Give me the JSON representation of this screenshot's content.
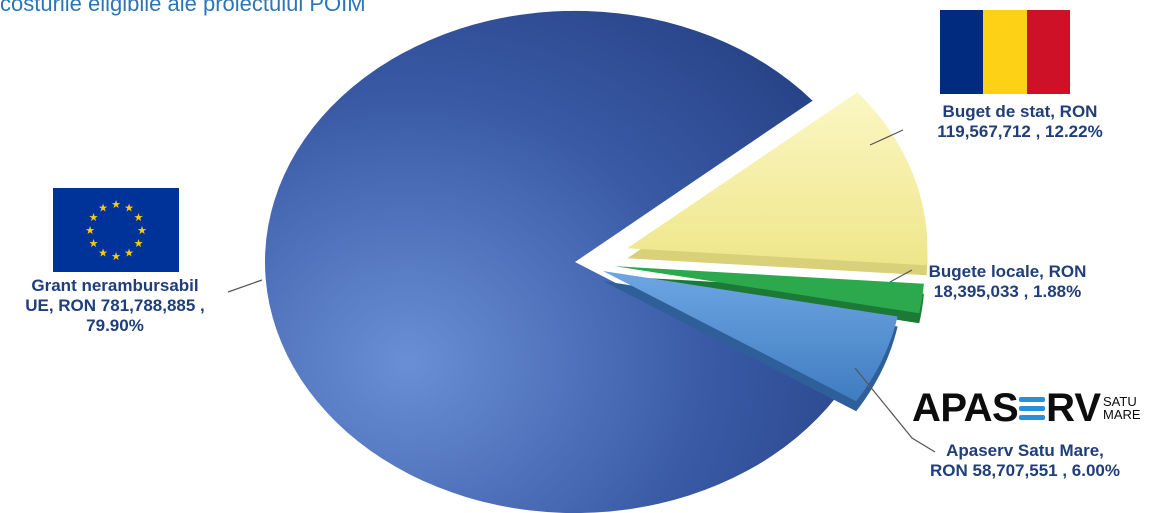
{
  "title": "costurile eligibile ale proiectului POIM",
  "colors": {
    "eu_slice": "#2f4f98",
    "stat_slice": "#f7f2a0",
    "local_slice": "#2ca94c",
    "apaserv_slice": "#4f8ed2",
    "label_text": "#1f3e7a",
    "eu_flag_blue": "#003399",
    "eu_flag_stars": "#ffcc00",
    "ro_flag": [
      "#002b7f",
      "#fcd116",
      "#ce1126"
    ]
  },
  "logo": {
    "name": "APASERV",
    "part1": "APAS",
    "part2": "RV",
    "sub1": "SATU",
    "sub2": "MARE"
  },
  "chart_data": {
    "type": "pie",
    "title": "costurile eligibile ale proiectului POIM",
    "unit": "RON",
    "slices": [
      {
        "name": "Grant nerambursabil UE, RON",
        "value": 781788885,
        "percent": 79.9,
        "label_lines": [
          "Grant nerambursabil",
          "UE, RON 781,788,885 ,",
          "79.90%"
        ]
      },
      {
        "name": "Buget de stat, RON",
        "value": 119567712,
        "percent": 12.22,
        "label_lines": [
          "Buget de stat, RON",
          "119,567,712 , 12.22%"
        ]
      },
      {
        "name": "Bugete locale, RON",
        "value": 18395033,
        "percent": 1.88,
        "label_lines": [
          "Bugete locale, RON",
          "18,395,033 , 1.88%"
        ]
      },
      {
        "name": "Apaserv Satu Mare, RON",
        "value": 58707551,
        "percent": 6.0,
        "label_lines": [
          "Apaserv Satu Mare,",
          "RON 58,707,551 , 6.00%"
        ]
      }
    ]
  }
}
